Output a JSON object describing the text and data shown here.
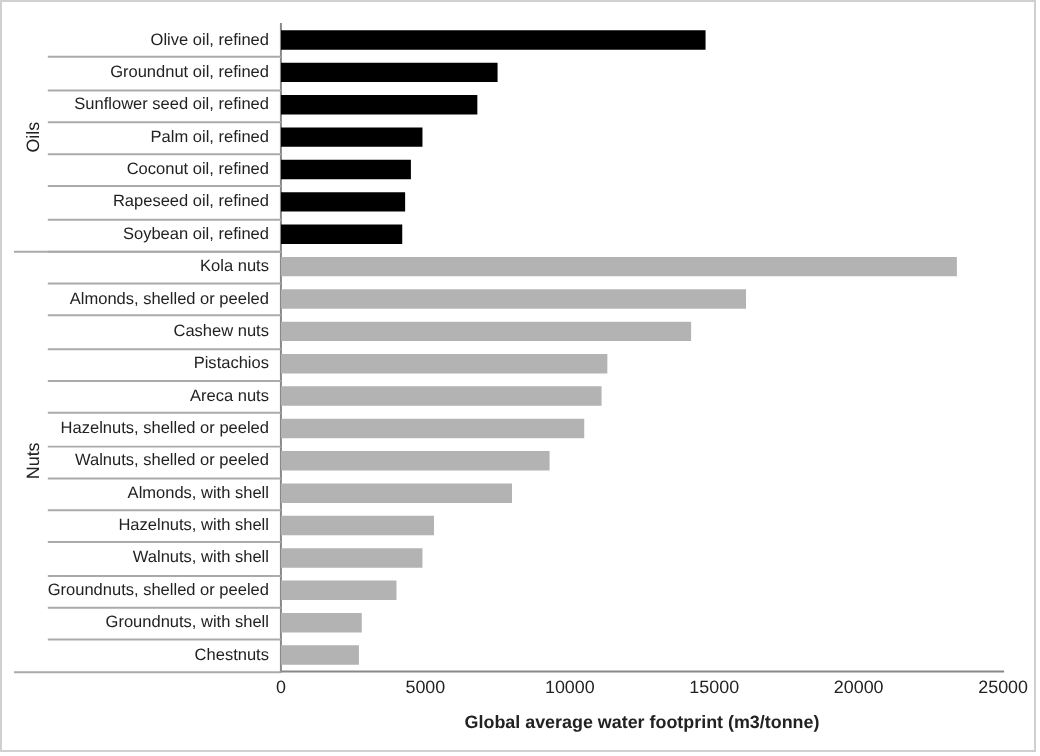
{
  "chart_data": {
    "type": "bar",
    "orientation": "horizontal",
    "stacked": true,
    "xlabel": "Global average water footprint (m3/tonne)",
    "categories": [
      "Olive oil, refined",
      "Groundnut oil, refined",
      "Sunflower seed oil, refined",
      "Palm oil, refined",
      "Coconut oil, refined",
      "Rapeseed oil, refined",
      "Soybean oil, refined",
      "Kola nuts",
      "Almonds, shelled or peeled",
      "Cashew nuts",
      "Pistachios",
      "Areca nuts",
      "Hazelnuts, shelled or peeled",
      "Walnuts, shelled or peeled",
      "Almonds, with shell",
      "Hazelnuts, with shell",
      "Walnuts, with shell",
      "Groundnuts, shelled or peeled",
      "Groundnuts, with shell",
      "Chestnuts"
    ],
    "series": [
      {
        "name": "Oils",
        "color": "#000000",
        "values": [
          14700,
          7500,
          6800,
          4900,
          4500,
          4300,
          4200,
          null,
          null,
          null,
          null,
          null,
          null,
          null,
          null,
          null,
          null,
          null,
          null,
          null
        ]
      },
      {
        "name": "Nuts",
        "color": "#b3b3b3",
        "values": [
          null,
          null,
          null,
          null,
          null,
          null,
          null,
          23400,
          16100,
          14200,
          11300,
          11100,
          10500,
          9300,
          8000,
          5300,
          4900,
          4000,
          2800,
          2700
        ]
      }
    ],
    "xlim": [
      0,
      25000
    ],
    "xticks": [
      0,
      5000,
      10000,
      15000,
      20000,
      25000
    ],
    "grid": false,
    "legend": false
  }
}
